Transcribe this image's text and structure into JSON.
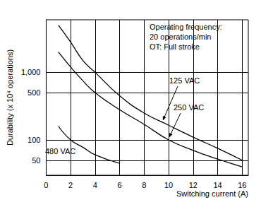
{
  "chart_data": {
    "type": "line",
    "x_label": "Switching current (A)",
    "y_label": "Durability (x 10⁴ operations)",
    "annotations": [
      "Operating frequency:",
      "20 operations/min",
      "OT: Full stroke"
    ],
    "x": [
      1,
      2,
      3,
      4,
      6,
      8,
      10,
      12,
      14,
      16
    ],
    "series": [
      {
        "name": "125 VAC",
        "color": "#000000",
        "line_style": "solid",
        "marker": "none",
        "values": [
          5000,
          2800,
          1500,
          1000,
          450,
          250,
          165,
          110,
          75,
          50
        ]
      },
      {
        "name": "250 VAC",
        "color": "#000000",
        "line_style": "solid",
        "marker": "none",
        "values": [
          2000,
          1200,
          750,
          500,
          280,
          170,
          100,
          70,
          52,
          40
        ]
      },
      {
        "name": "480 VAC",
        "color": "#000000",
        "line_style": "solid",
        "marker": "none",
        "values": [
          160,
          100,
          78,
          60,
          45,
          null,
          null,
          null,
          null,
          null
        ]
      }
    ],
    "xlim": [
      0,
      16.5
    ],
    "xticks": [
      0,
      2,
      4,
      6,
      8,
      10,
      12,
      14,
      16
    ],
    "ylim": [
      30,
      6000
    ],
    "yticks": [
      50,
      100,
      500,
      {
        "value": 1000,
        "label": "1,000"
      }
    ],
    "log": "y",
    "grid": true
  }
}
